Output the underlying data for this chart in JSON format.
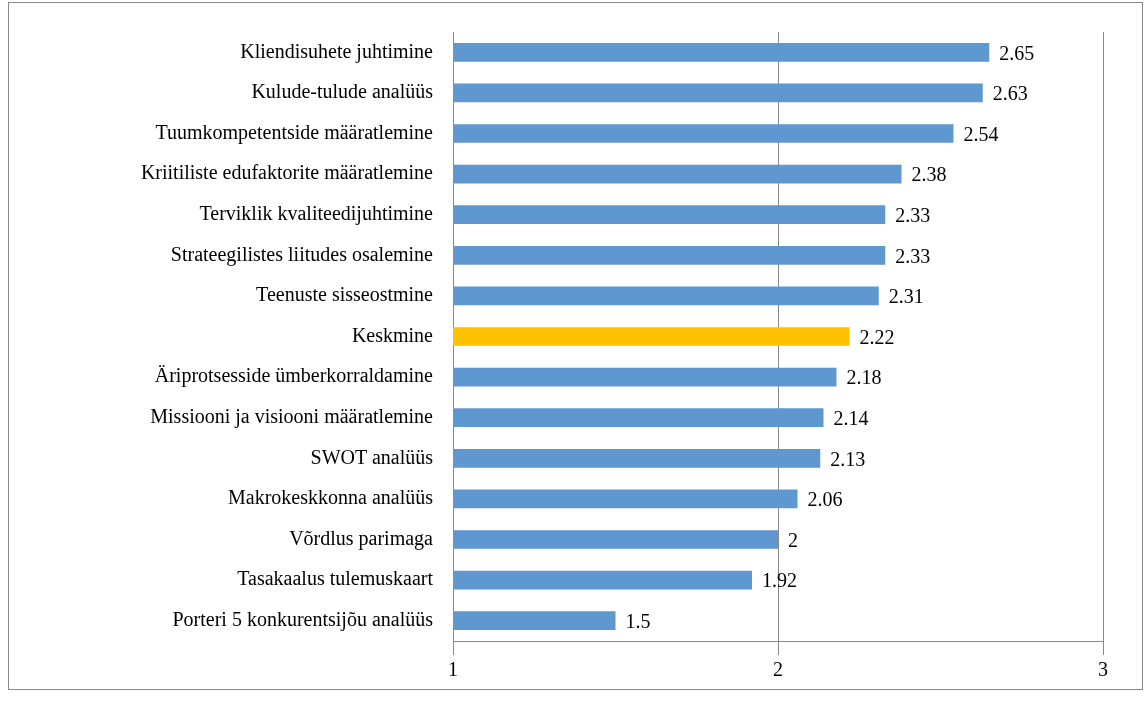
{
  "chart_data": {
    "type": "bar",
    "orientation": "horizontal",
    "categories": [
      "Kliendisuhete juhtimine",
      "Kulude-tulude analüüs",
      "Tuumkompetentside määratlemine",
      "Kriitiliste edufaktorite määratlemine",
      "Terviklik kvaliteedijuhtimine",
      "Strateegilistes liitudes osalemine",
      "Teenuste sisseostmine",
      "Keskmine",
      "Äriprotsesside ümberkorraldamine",
      "Missiooni ja visiooni määratlemine",
      "SWOT analüüs",
      "Makrokeskkonna analüüs",
      "Võrdlus parimaga",
      "Tasakaalus tulemuskaart",
      "Porteri 5 konkurentsijõu analüüs"
    ],
    "values": [
      2.65,
      2.63,
      2.54,
      2.38,
      2.33,
      2.33,
      2.31,
      2.22,
      2.18,
      2.14,
      2.13,
      2.06,
      2,
      1.92,
      1.5
    ],
    "colors": [
      "#5f97d0",
      "#5f97d0",
      "#5f97d0",
      "#5f97d0",
      "#5f97d0",
      "#5f97d0",
      "#5f97d0",
      "#ffc000",
      "#5f97d0",
      "#5f97d0",
      "#5f97d0",
      "#5f97d0",
      "#5f97d0",
      "#5f97d0",
      "#5f97d0"
    ],
    "xlim": [
      1,
      3
    ],
    "xticks": [
      1,
      2,
      3
    ],
    "grid": "x",
    "data_labels": true,
    "legend": false
  }
}
